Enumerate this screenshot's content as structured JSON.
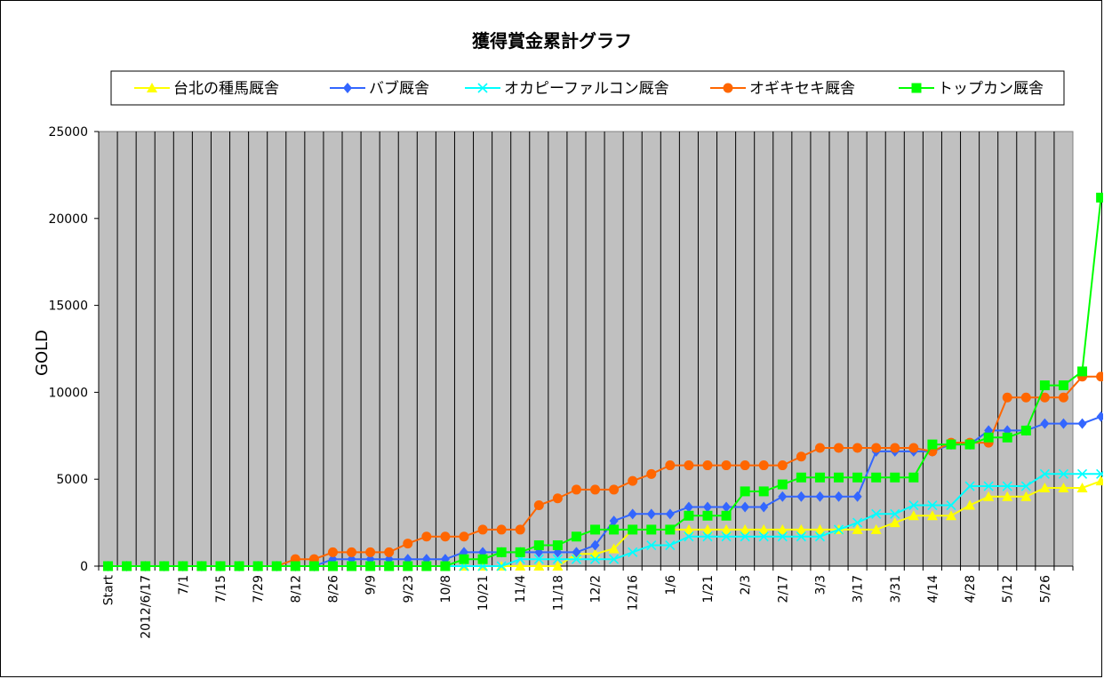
{
  "chart_data": {
    "type": "line",
    "title": "獲得賞金累計グラフ",
    "xlabel": "",
    "ylabel": "GOLD",
    "ylim": [
      0,
      25000
    ],
    "yticks": [
      0,
      5000,
      10000,
      15000,
      20000,
      25000
    ],
    "grid": "vertical",
    "legend_position": "top",
    "plot_background": "#c0c0c0",
    "x_labels": [
      "Start",
      "",
      "2012/6/17",
      "",
      "7/1",
      "",
      "7/15",
      "",
      "7/29",
      "",
      "8/12",
      "",
      "8/26",
      "",
      "9/9",
      "",
      "9/23",
      "",
      "10/8",
      "",
      "10/21",
      "",
      "11/4",
      "",
      "11/18",
      "",
      "12/2",
      "",
      "12/16",
      "",
      "1/6",
      "",
      "1/21",
      "",
      "2/3",
      "",
      "2/17",
      "",
      "3/3",
      "",
      "3/17",
      "",
      "3/31",
      "",
      "4/14",
      "",
      "4/28",
      "",
      "5/12",
      "",
      "5/26",
      ""
    ],
    "series": [
      {
        "name": "台北の種馬厩舎",
        "color": "#ffff00",
        "marker": "triangle",
        "values": [
          0,
          0,
          0,
          0,
          0,
          0,
          0,
          0,
          0,
          0,
          0,
          0,
          0,
          0,
          0,
          0,
          0,
          0,
          0,
          0,
          0,
          0,
          0,
          0,
          0,
          700,
          700,
          1000,
          2100,
          2100,
          2100,
          2100,
          2100,
          2100,
          2100,
          2100,
          2100,
          2100,
          2100,
          2100,
          2100,
          2100,
          2500,
          2900,
          2900,
          2900,
          3500,
          4000,
          4000,
          4000,
          4500,
          4500,
          4500,
          4900,
          4900
        ]
      },
      {
        "name": "バブ厩舎",
        "color": "#3366ff",
        "marker": "diamond",
        "values": [
          0,
          0,
          0,
          0,
          0,
          0,
          0,
          0,
          0,
          0,
          0,
          0,
          400,
          400,
          400,
          400,
          400,
          400,
          400,
          800,
          800,
          800,
          800,
          800,
          800,
          800,
          1200,
          2600,
          3000,
          3000,
          3000,
          3400,
          3400,
          3400,
          3400,
          3400,
          4000,
          4000,
          4000,
          4000,
          4000,
          6600,
          6600,
          6600,
          6600,
          7000,
          7000,
          7800,
          7800,
          7800,
          8200,
          8200,
          8200,
          8600,
          8600
        ]
      },
      {
        "name": "オカピーファルコン厩舎",
        "color": "#00ffff",
        "marker": "x",
        "values": [
          0,
          0,
          0,
          0,
          0,
          0,
          0,
          0,
          0,
          0,
          0,
          0,
          0,
          0,
          0,
          0,
          0,
          0,
          0,
          0,
          0,
          0,
          400,
          400,
          400,
          400,
          400,
          400,
          800,
          1200,
          1200,
          1700,
          1700,
          1700,
          1700,
          1700,
          1700,
          1700,
          1700,
          2100,
          2500,
          3000,
          3000,
          3500,
          3500,
          3500,
          4600,
          4600,
          4600,
          4600,
          5300,
          5300,
          5300,
          5300,
          5800
        ]
      },
      {
        "name": "オギキセキ厩舎",
        "color": "#ff6600",
        "marker": "circle",
        "values": [
          0,
          0,
          0,
          0,
          0,
          0,
          0,
          0,
          0,
          0,
          400,
          400,
          800,
          800,
          800,
          800,
          1300,
          1700,
          1700,
          1700,
          2100,
          2100,
          2100,
          3500,
          3900,
          4400,
          4400,
          4400,
          4900,
          5300,
          5800,
          5800,
          5800,
          5800,
          5800,
          5800,
          5800,
          6300,
          6800,
          6800,
          6800,
          6800,
          6800,
          6800,
          6600,
          7100,
          7100,
          7100,
          9700,
          9700,
          9700,
          9700,
          10900,
          10900,
          10900
        ]
      },
      {
        "name": "トップカン厩舎",
        "color": "#00ff00",
        "marker": "square",
        "values": [
          0,
          0,
          0,
          0,
          0,
          0,
          0,
          0,
          0,
          0,
          0,
          0,
          0,
          0,
          0,
          0,
          0,
          0,
          0,
          400,
          400,
          800,
          800,
          1200,
          1200,
          1700,
          2100,
          2100,
          2100,
          2100,
          2100,
          2900,
          2900,
          2900,
          4300,
          4300,
          4700,
          5100,
          5100,
          5100,
          5100,
          5100,
          5100,
          5100,
          7000,
          7000,
          7000,
          7400,
          7400,
          7800,
          10400,
          10400,
          11200,
          21200,
          21200
        ]
      }
    ]
  }
}
